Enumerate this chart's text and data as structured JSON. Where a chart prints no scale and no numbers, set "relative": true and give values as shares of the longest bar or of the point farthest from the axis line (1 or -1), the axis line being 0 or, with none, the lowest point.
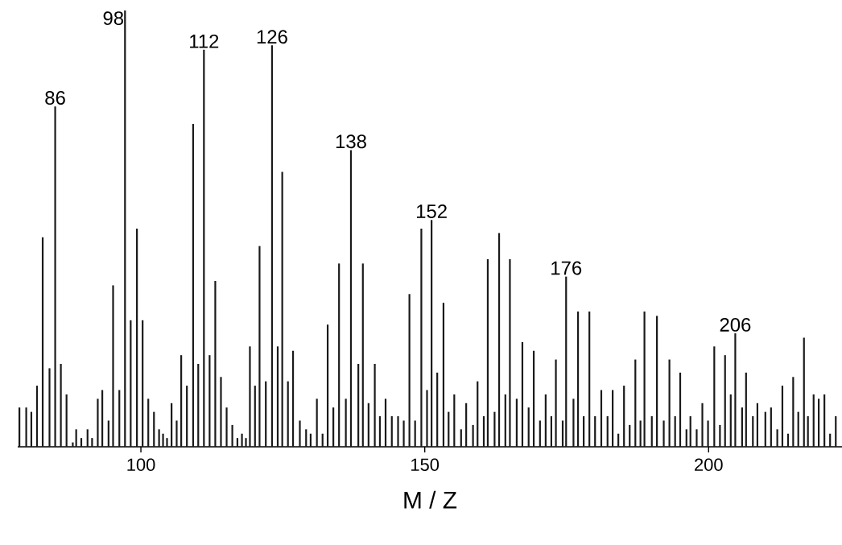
{
  "chart_data": {
    "type": "bar",
    "relative": true,
    "xlabel": "M / Z",
    "color": "#1a1a1a",
    "xlim": [
      78.3,
      223.5
    ],
    "xticks": [
      {
        "value": 100,
        "label": "100"
      },
      {
        "value": 150,
        "label": "150"
      },
      {
        "value": 200,
        "label": "200"
      }
    ],
    "x": [
      78.6,
      79.8,
      80.7,
      81.7,
      82.7,
      83.9,
      84.9,
      85.9,
      86.9,
      88.0,
      88.6,
      89.5,
      90.6,
      91.4,
      92.4,
      93.2,
      94.3,
      95.1,
      96.2,
      97.2,
      98.2,
      99.3,
      100.3,
      101.3,
      102.3,
      103.2,
      103.9,
      104.6,
      105.4,
      106.3,
      107.1,
      108.1,
      109.2,
      110.1,
      111.1,
      112.1,
      113.1,
      114.1,
      115.1,
      116.1,
      117.0,
      117.8,
      118.5,
      119.2,
      120.1,
      120.9,
      122.0,
      123.1,
      124.1,
      124.9,
      125.9,
      126.8,
      128.0,
      129.1,
      129.9,
      131.0,
      132.0,
      132.9,
      133.9,
      134.9,
      136.1,
      137.0,
      138.3,
      139.1,
      140.1,
      141.2,
      142.1,
      143.1,
      144.2,
      145.3,
      146.3,
      147.3,
      148.3,
      149.4,
      150.4,
      151.2,
      152.2,
      153.3,
      154.2,
      155.2,
      156.4,
      157.3,
      158.5,
      159.3,
      160.4,
      161.1,
      162.3,
      163.1,
      164.2,
      165.0,
      166.2,
      167.2,
      168.3,
      169.2,
      170.3,
      171.3,
      172.3,
      173.1,
      174.3,
      174.9,
      176.2,
      177.0,
      178.0,
      179.0,
      180.0,
      181.1,
      182.2,
      183.1,
      184.1,
      185.1,
      186.1,
      187.1,
      188.0,
      188.7,
      190.0,
      190.9,
      192.1,
      193.1,
      194.1,
      195.0,
      196.1,
      196.8,
      197.9,
      198.9,
      199.9,
      201.0,
      202.0,
      202.9,
      203.9,
      204.7,
      205.9,
      206.6,
      207.8,
      208.6,
      210.0,
      211.0,
      212.1,
      213.0,
      214.0,
      214.9,
      215.8,
      216.8,
      217.5,
      218.5,
      219.4,
      220.4,
      221.4,
      222.4
    ],
    "values": [
      0.09,
      0.09,
      0.08,
      0.14,
      0.48,
      0.18,
      0.78,
      0.19,
      0.12,
      0.01,
      0.04,
      0.02,
      0.04,
      0.02,
      0.11,
      0.13,
      0.06,
      0.37,
      0.13,
      1.0,
      0.29,
      0.5,
      0.29,
      0.11,
      0.08,
      0.04,
      0.03,
      0.02,
      0.1,
      0.06,
      0.21,
      0.14,
      0.74,
      0.19,
      0.91,
      0.21,
      0.38,
      0.16,
      0.09,
      0.05,
      0.02,
      0.03,
      0.02,
      0.23,
      0.14,
      0.46,
      0.15,
      0.92,
      0.23,
      0.63,
      0.15,
      0.22,
      0.06,
      0.04,
      0.03,
      0.11,
      0.03,
      0.28,
      0.09,
      0.42,
      0.11,
      0.68,
      0.19,
      0.42,
      0.1,
      0.19,
      0.07,
      0.11,
      0.07,
      0.07,
      0.06,
      0.35,
      0.06,
      0.5,
      0.13,
      0.52,
      0.17,
      0.33,
      0.08,
      0.12,
      0.04,
      0.1,
      0.05,
      0.15,
      0.07,
      0.43,
      0.08,
      0.49,
      0.12,
      0.43,
      0.11,
      0.24,
      0.09,
      0.22,
      0.06,
      0.12,
      0.07,
      0.2,
      0.06,
      0.39,
      0.11,
      0.31,
      0.07,
      0.31,
      0.07,
      0.13,
      0.07,
      0.13,
      0.03,
      0.14,
      0.05,
      0.2,
      0.06,
      0.31,
      0.07,
      0.3,
      0.06,
      0.2,
      0.07,
      0.17,
      0.04,
      0.07,
      0.04,
      0.1,
      0.06,
      0.23,
      0.05,
      0.21,
      0.12,
      0.26,
      0.09,
      0.17,
      0.07,
      0.1,
      0.08,
      0.09,
      0.04,
      0.14,
      0.03,
      0.16,
      0.08,
      0.25,
      0.07,
      0.12,
      0.11,
      0.12,
      0.03,
      0.07
    ],
    "annotations": [
      {
        "text": "86",
        "x": 84.9,
        "y": 0.78
      },
      {
        "text": "98",
        "x": 97.2,
        "y": 1.0
      },
      {
        "text": "112",
        "x": 111.1,
        "y": 0.91
      },
      {
        "text": "126",
        "x": 123.1,
        "y": 0.92
      },
      {
        "text": "138",
        "x": 137.0,
        "y": 0.68
      },
      {
        "text": "152",
        "x": 151.2,
        "y": 0.52
      },
      {
        "text": "176",
        "x": 174.9,
        "y": 0.39
      },
      {
        "text": "206",
        "x": 204.7,
        "y": 0.26
      }
    ]
  }
}
